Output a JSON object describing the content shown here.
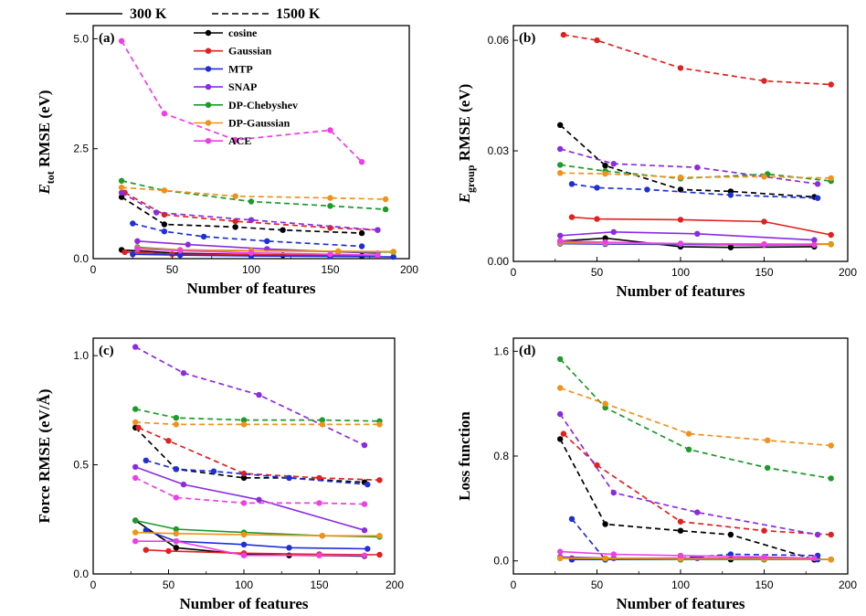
{
  "top_legend": {
    "solid_label": "300 K",
    "dashed_label": "1500 K"
  },
  "methods": [
    {
      "name": "cosine",
      "color": "#000000"
    },
    {
      "name": "Gaussian",
      "color": "#e0211f"
    },
    {
      "name": "MTP",
      "color": "#1f2fd6"
    },
    {
      "name": "SNAP",
      "color": "#8b2be0"
    },
    {
      "name": "DP-Chebyshev",
      "color": "#1c9a2a"
    },
    {
      "name": "DP-Gaussian",
      "color": "#f0921a"
    },
    {
      "name": "ACE",
      "color": "#ee3ee6"
    }
  ],
  "chart_data": [
    {
      "type": "line",
      "panel": "(a)",
      "ylabel_main": "E",
      "ylabel_sub": "tot",
      "ylabel_rest": " RMSE (eV)",
      "xlabel": "Number of features",
      "xlim": [
        0,
        200
      ],
      "ylim": [
        0,
        5.3
      ],
      "xticks": [
        0,
        50,
        100,
        150,
        200
      ],
      "yticks": [
        0.0,
        2.5,
        5.0
      ],
      "ytick_labels": [
        "0.0",
        "2.5",
        "5.0"
      ],
      "series": [
        {
          "method": "cosine",
          "style": "solid",
          "x": [
            18,
            55,
            120,
            170
          ],
          "y": [
            0.2,
            0.12,
            0.08,
            0.06
          ]
        },
        {
          "method": "cosine",
          "style": "dashed",
          "x": [
            18,
            45,
            90,
            120,
            170
          ],
          "y": [
            1.4,
            0.78,
            0.72,
            0.65,
            0.58
          ]
        },
        {
          "method": "Gaussian",
          "style": "solid",
          "x": [
            20,
            50,
            100,
            150,
            180
          ],
          "y": [
            0.15,
            0.1,
            0.09,
            0.08,
            0.07
          ]
        },
        {
          "method": "Gaussian",
          "style": "dashed",
          "x": [
            20,
            45,
            90,
            150,
            180
          ],
          "y": [
            1.5,
            1.0,
            0.85,
            0.7,
            0.65
          ]
        },
        {
          "method": "MTP",
          "style": "solid",
          "x": [
            25,
            55,
            100,
            150,
            190
          ],
          "y": [
            0.1,
            0.08,
            0.06,
            0.05,
            0.04
          ]
        },
        {
          "method": "MTP",
          "style": "dashed",
          "x": [
            25,
            45,
            70,
            110,
            170
          ],
          "y": [
            0.8,
            0.62,
            0.5,
            0.4,
            0.28
          ]
        },
        {
          "method": "SNAP",
          "style": "solid",
          "x": [
            28,
            60,
            110,
            180
          ],
          "y": [
            0.4,
            0.32,
            0.22,
            0.12
          ]
        },
        {
          "method": "SNAP",
          "style": "dashed",
          "x": [
            18,
            40,
            100,
            180
          ],
          "y": [
            1.5,
            1.05,
            0.88,
            0.65
          ]
        },
        {
          "method": "DP-Chebyshev",
          "style": "solid",
          "x": [
            28,
            55,
            100,
            155,
            190
          ],
          "y": [
            0.26,
            0.2,
            0.18,
            0.16,
            0.15
          ]
        },
        {
          "method": "DP-Chebyshev",
          "style": "dashed",
          "x": [
            18,
            45,
            100,
            150,
            185
          ],
          "y": [
            1.77,
            1.55,
            1.3,
            1.2,
            1.12
          ]
        },
        {
          "method": "DP-Gaussian",
          "style": "solid",
          "x": [
            28,
            55,
            100,
            155,
            190
          ],
          "y": [
            0.24,
            0.2,
            0.18,
            0.17,
            0.16
          ]
        },
        {
          "method": "DP-Gaussian",
          "style": "dashed",
          "x": [
            18,
            45,
            90,
            150,
            185
          ],
          "y": [
            1.62,
            1.55,
            1.42,
            1.38,
            1.35
          ]
        },
        {
          "method": "ACE",
          "style": "solid",
          "x": [
            28,
            55,
            100,
            150,
            180
          ],
          "y": [
            0.22,
            0.18,
            0.13,
            0.1,
            0.08
          ]
        },
        {
          "method": "ACE",
          "style": "dashed",
          "x": [
            18,
            45,
            90,
            150,
            170
          ],
          "y": [
            4.95,
            3.3,
            2.7,
            2.92,
            2.2
          ]
        }
      ]
    },
    {
      "type": "line",
      "panel": "(b)",
      "ylabel_main": "E",
      "ylabel_sub": "group",
      "ylabel_rest": " RMSE (eV)",
      "xlabel": "Number of features",
      "xlim": [
        0,
        200
      ],
      "ylim": [
        0,
        0.064
      ],
      "xticks": [
        0,
        50,
        100,
        150,
        200
      ],
      "yticks": [
        0.0,
        0.03,
        0.06
      ],
      "ytick_labels": [
        "0.00",
        "0.03",
        "0.06"
      ],
      "series": [
        {
          "method": "cosine",
          "style": "solid",
          "x": [
            28,
            55,
            100,
            130,
            180
          ],
          "y": [
            0.0055,
            0.0063,
            0.004,
            0.0038,
            0.004
          ]
        },
        {
          "method": "cosine",
          "style": "dashed",
          "x": [
            28,
            55,
            100,
            130,
            180
          ],
          "y": [
            0.037,
            0.026,
            0.0195,
            0.019,
            0.0175
          ]
        },
        {
          "method": "Gaussian",
          "style": "solid",
          "x": [
            35,
            50,
            100,
            150,
            190
          ],
          "y": [
            0.012,
            0.0115,
            0.0113,
            0.0108,
            0.0072
          ]
        },
        {
          "method": "Gaussian",
          "style": "dashed",
          "x": [
            30,
            50,
            100,
            150,
            190
          ],
          "y": [
            0.0615,
            0.06,
            0.0525,
            0.049,
            0.048
          ]
        },
        {
          "method": "MTP",
          "style": "solid",
          "x": [
            28,
            55,
            100,
            150,
            180
          ],
          "y": [
            0.0048,
            0.0047,
            0.0046,
            0.0045,
            0.0045
          ]
        },
        {
          "method": "MTP",
          "style": "dashed",
          "x": [
            35,
            50,
            80,
            130,
            182
          ],
          "y": [
            0.021,
            0.02,
            0.0195,
            0.018,
            0.0172
          ]
        },
        {
          "method": "SNAP",
          "style": "solid",
          "x": [
            28,
            60,
            110,
            180
          ],
          "y": [
            0.007,
            0.008,
            0.0075,
            0.0058
          ]
        },
        {
          "method": "SNAP",
          "style": "dashed",
          "x": [
            28,
            60,
            110,
            182
          ],
          "y": [
            0.0305,
            0.0265,
            0.0255,
            0.021
          ]
        },
        {
          "method": "DP-Chebyshev",
          "style": "solid",
          "x": [
            28,
            55,
            100,
            150,
            190
          ],
          "y": [
            0.0052,
            0.005,
            0.0048,
            0.0047,
            0.0047
          ]
        },
        {
          "method": "DP-Chebyshev",
          "style": "dashed",
          "x": [
            28,
            55,
            100,
            152,
            190
          ],
          "y": [
            0.0262,
            0.0245,
            0.0225,
            0.0237,
            0.0218
          ]
        },
        {
          "method": "DP-Gaussian",
          "style": "solid",
          "x": [
            28,
            55,
            100,
            150,
            190
          ],
          "y": [
            0.005,
            0.0049,
            0.0048,
            0.0047,
            0.0046
          ]
        },
        {
          "method": "DP-Gaussian",
          "style": "dashed",
          "x": [
            28,
            55,
            100,
            150,
            190
          ],
          "y": [
            0.024,
            0.0238,
            0.0228,
            0.023,
            0.0226
          ]
        },
        {
          "method": "ACE",
          "style": "solid",
          "x": [
            28,
            55,
            100,
            150,
            180
          ],
          "y": [
            0.0055,
            0.0052,
            0.0048,
            0.0046,
            0.0045
          ]
        }
      ]
    },
    {
      "type": "line",
      "panel": "(c)",
      "ylabel_main": "Force RMSE (eV/Å)",
      "ylabel_sub": "",
      "ylabel_rest": "",
      "xlabel": "Number of features",
      "xlim": [
        0,
        200
      ],
      "ylim": [
        0,
        1.08
      ],
      "xticks": [
        0,
        50,
        100,
        150,
        200
      ],
      "yticks": [
        0.0,
        0.5,
        1.0
      ],
      "ytick_labels": [
        "0.0",
        "0.5",
        "1.0"
      ],
      "series": [
        {
          "method": "cosine",
          "style": "solid",
          "x": [
            28,
            55,
            100,
            130,
            180
          ],
          "y": [
            0.245,
            0.12,
            0.09,
            0.085,
            0.082
          ]
        },
        {
          "method": "cosine",
          "style": "dashed",
          "x": [
            28,
            55,
            100,
            130,
            180
          ],
          "y": [
            0.67,
            0.48,
            0.44,
            0.44,
            0.42
          ]
        },
        {
          "method": "Gaussian",
          "style": "solid",
          "x": [
            35,
            50,
            100,
            150,
            190
          ],
          "y": [
            0.11,
            0.105,
            0.095,
            0.09,
            0.088
          ]
        },
        {
          "method": "Gaussian",
          "style": "dashed",
          "x": [
            30,
            50,
            100,
            150,
            190
          ],
          "y": [
            0.67,
            0.61,
            0.46,
            0.44,
            0.43
          ]
        },
        {
          "method": "MTP",
          "style": "solid",
          "x": [
            35,
            55,
            100,
            130,
            182
          ],
          "y": [
            0.2,
            0.15,
            0.135,
            0.12,
            0.115
          ]
        },
        {
          "method": "MTP",
          "style": "dashed",
          "x": [
            35,
            55,
            80,
            130,
            182
          ],
          "y": [
            0.52,
            0.48,
            0.47,
            0.44,
            0.41
          ]
        },
        {
          "method": "SNAP",
          "style": "solid",
          "x": [
            28,
            60,
            110,
            180
          ],
          "y": [
            0.49,
            0.41,
            0.34,
            0.2
          ]
        },
        {
          "method": "SNAP",
          "style": "dashed",
          "x": [
            28,
            60,
            110,
            180
          ],
          "y": [
            1.04,
            0.92,
            0.82,
            0.59
          ]
        },
        {
          "method": "DP-Chebyshev",
          "style": "solid",
          "x": [
            28,
            55,
            100,
            152,
            190
          ],
          "y": [
            0.245,
            0.205,
            0.19,
            0.175,
            0.17
          ]
        },
        {
          "method": "DP-Chebyshev",
          "style": "dashed",
          "x": [
            28,
            55,
            100,
            152,
            190
          ],
          "y": [
            0.755,
            0.715,
            0.705,
            0.705,
            0.7
          ]
        },
        {
          "method": "DP-Gaussian",
          "style": "solid",
          "x": [
            28,
            55,
            100,
            152,
            190
          ],
          "y": [
            0.19,
            0.185,
            0.18,
            0.175,
            0.175
          ]
        },
        {
          "method": "DP-Gaussian",
          "style": "dashed",
          "x": [
            28,
            55,
            100,
            152,
            190
          ],
          "y": [
            0.695,
            0.685,
            0.685,
            0.685,
            0.685
          ]
        },
        {
          "method": "ACE",
          "style": "solid",
          "x": [
            28,
            55,
            100,
            150,
            180
          ],
          "y": [
            0.15,
            0.15,
            0.085,
            0.085,
            0.085
          ]
        },
        {
          "method": "ACE",
          "style": "dashed",
          "x": [
            28,
            55,
            100,
            150,
            180
          ],
          "y": [
            0.44,
            0.35,
            0.325,
            0.325,
            0.32
          ]
        }
      ]
    },
    {
      "type": "line",
      "panel": "(d)",
      "ylabel_main": "Loss function",
      "ylabel_sub": "",
      "ylabel_rest": "",
      "xlabel": "Number of features",
      "xlim": [
        0,
        200
      ],
      "ylim": [
        -0.1,
        1.7
      ],
      "xticks": [
        0,
        50,
        100,
        150,
        200
      ],
      "yticks": [
        0.0,
        0.8,
        1.6
      ],
      "ytick_labels": [
        "0.0",
        "0.8",
        "1.6"
      ],
      "series": [
        {
          "method": "cosine",
          "style": "solid",
          "x": [
            35,
            55,
            100,
            130,
            180
          ],
          "y": [
            0.01,
            0.01,
            0.01,
            0.01,
            0.01
          ]
        },
        {
          "method": "cosine",
          "style": "dashed",
          "x": [
            28,
            55,
            100,
            130,
            180
          ],
          "y": [
            0.93,
            0.28,
            0.23,
            0.2,
            0.01
          ]
        },
        {
          "method": "Gaussian",
          "style": "solid",
          "x": [
            35,
            55,
            100,
            150,
            190
          ],
          "y": [
            0.02,
            0.02,
            0.015,
            0.015,
            0.01
          ]
        },
        {
          "method": "Gaussian",
          "style": "dashed",
          "x": [
            30,
            50,
            100,
            150,
            190
          ],
          "y": [
            0.97,
            0.73,
            0.3,
            0.23,
            0.2
          ]
        },
        {
          "method": "MTP",
          "style": "solid",
          "x": [
            35,
            55,
            100,
            150,
            182
          ],
          "y": [
            0.01,
            0.01,
            0.01,
            0.01,
            0.01
          ]
        },
        {
          "method": "MTP",
          "style": "dashed",
          "x": [
            35,
            55,
            100,
            130,
            182
          ],
          "y": [
            0.32,
            0.01,
            0.02,
            0.05,
            0.04
          ]
        },
        {
          "method": "SNAP",
          "style": "solid",
          "x": [
            28,
            60,
            110,
            180
          ],
          "y": [
            0.03,
            0.02,
            0.02,
            0.02
          ]
        },
        {
          "method": "SNAP",
          "style": "dashed",
          "x": [
            28,
            60,
            110,
            182
          ],
          "y": [
            1.12,
            0.52,
            0.37,
            0.2
          ]
        },
        {
          "method": "DP-Chebyshev",
          "style": "solid",
          "x": [
            28,
            55,
            100,
            150,
            190
          ],
          "y": [
            0.02,
            0.015,
            0.01,
            0.01,
            0.01
          ]
        },
        {
          "method": "DP-Chebyshev",
          "style": "dashed",
          "x": [
            28,
            55,
            105,
            152,
            190
          ],
          "y": [
            1.54,
            1.17,
            0.85,
            0.71,
            0.63
          ]
        },
        {
          "method": "DP-Gaussian",
          "style": "solid",
          "x": [
            28,
            55,
            100,
            150,
            190
          ],
          "y": [
            0.02,
            0.02,
            0.015,
            0.015,
            0.01
          ]
        },
        {
          "method": "DP-Gaussian",
          "style": "dashed",
          "x": [
            28,
            55,
            105,
            152,
            190
          ],
          "y": [
            1.32,
            1.2,
            0.97,
            0.92,
            0.88
          ]
        },
        {
          "method": "ACE",
          "style": "solid",
          "x": [
            28,
            60,
            100,
            150,
            180
          ],
          "y": [
            0.07,
            0.05,
            0.04,
            0.03,
            0.02
          ]
        }
      ]
    }
  ]
}
